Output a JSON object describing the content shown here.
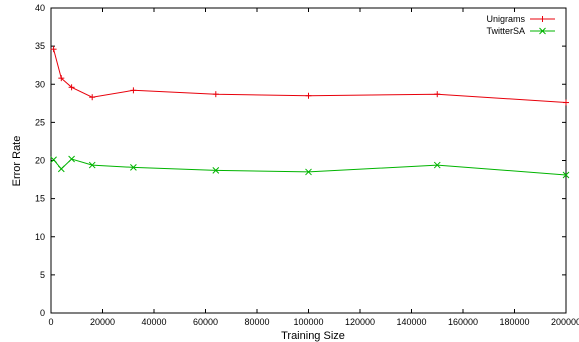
{
  "chart_data": {
    "type": "line",
    "title": "",
    "xlabel": "Training Size",
    "ylabel": "Error Rate",
    "xlim": [
      0,
      200000
    ],
    "ylim": [
      0,
      40
    ],
    "xticks": [
      0,
      20000,
      40000,
      60000,
      80000,
      100000,
      120000,
      140000,
      160000,
      180000,
      200000
    ],
    "yticks": [
      0,
      5,
      10,
      15,
      20,
      25,
      30,
      35,
      40
    ],
    "grid": false,
    "legend_position": "top-right",
    "series": [
      {
        "name": "Unigrams",
        "color": "#e8000b",
        "marker": "plus",
        "x": [
          1000,
          4000,
          8000,
          16000,
          32000,
          64000,
          100000,
          150000,
          200000
        ],
        "y": [
          34.6,
          30.8,
          29.6,
          28.3,
          29.2,
          28.7,
          28.5,
          28.7,
          27.6
        ]
      },
      {
        "name": "TwitterSA",
        "color": "#00b400",
        "marker": "x",
        "x": [
          1000,
          4000,
          8000,
          16000,
          32000,
          64000,
          100000,
          150000,
          200000
        ],
        "y": [
          20.1,
          18.9,
          20.2,
          19.4,
          19.1,
          18.7,
          18.5,
          19.4,
          18.1
        ]
      }
    ]
  }
}
